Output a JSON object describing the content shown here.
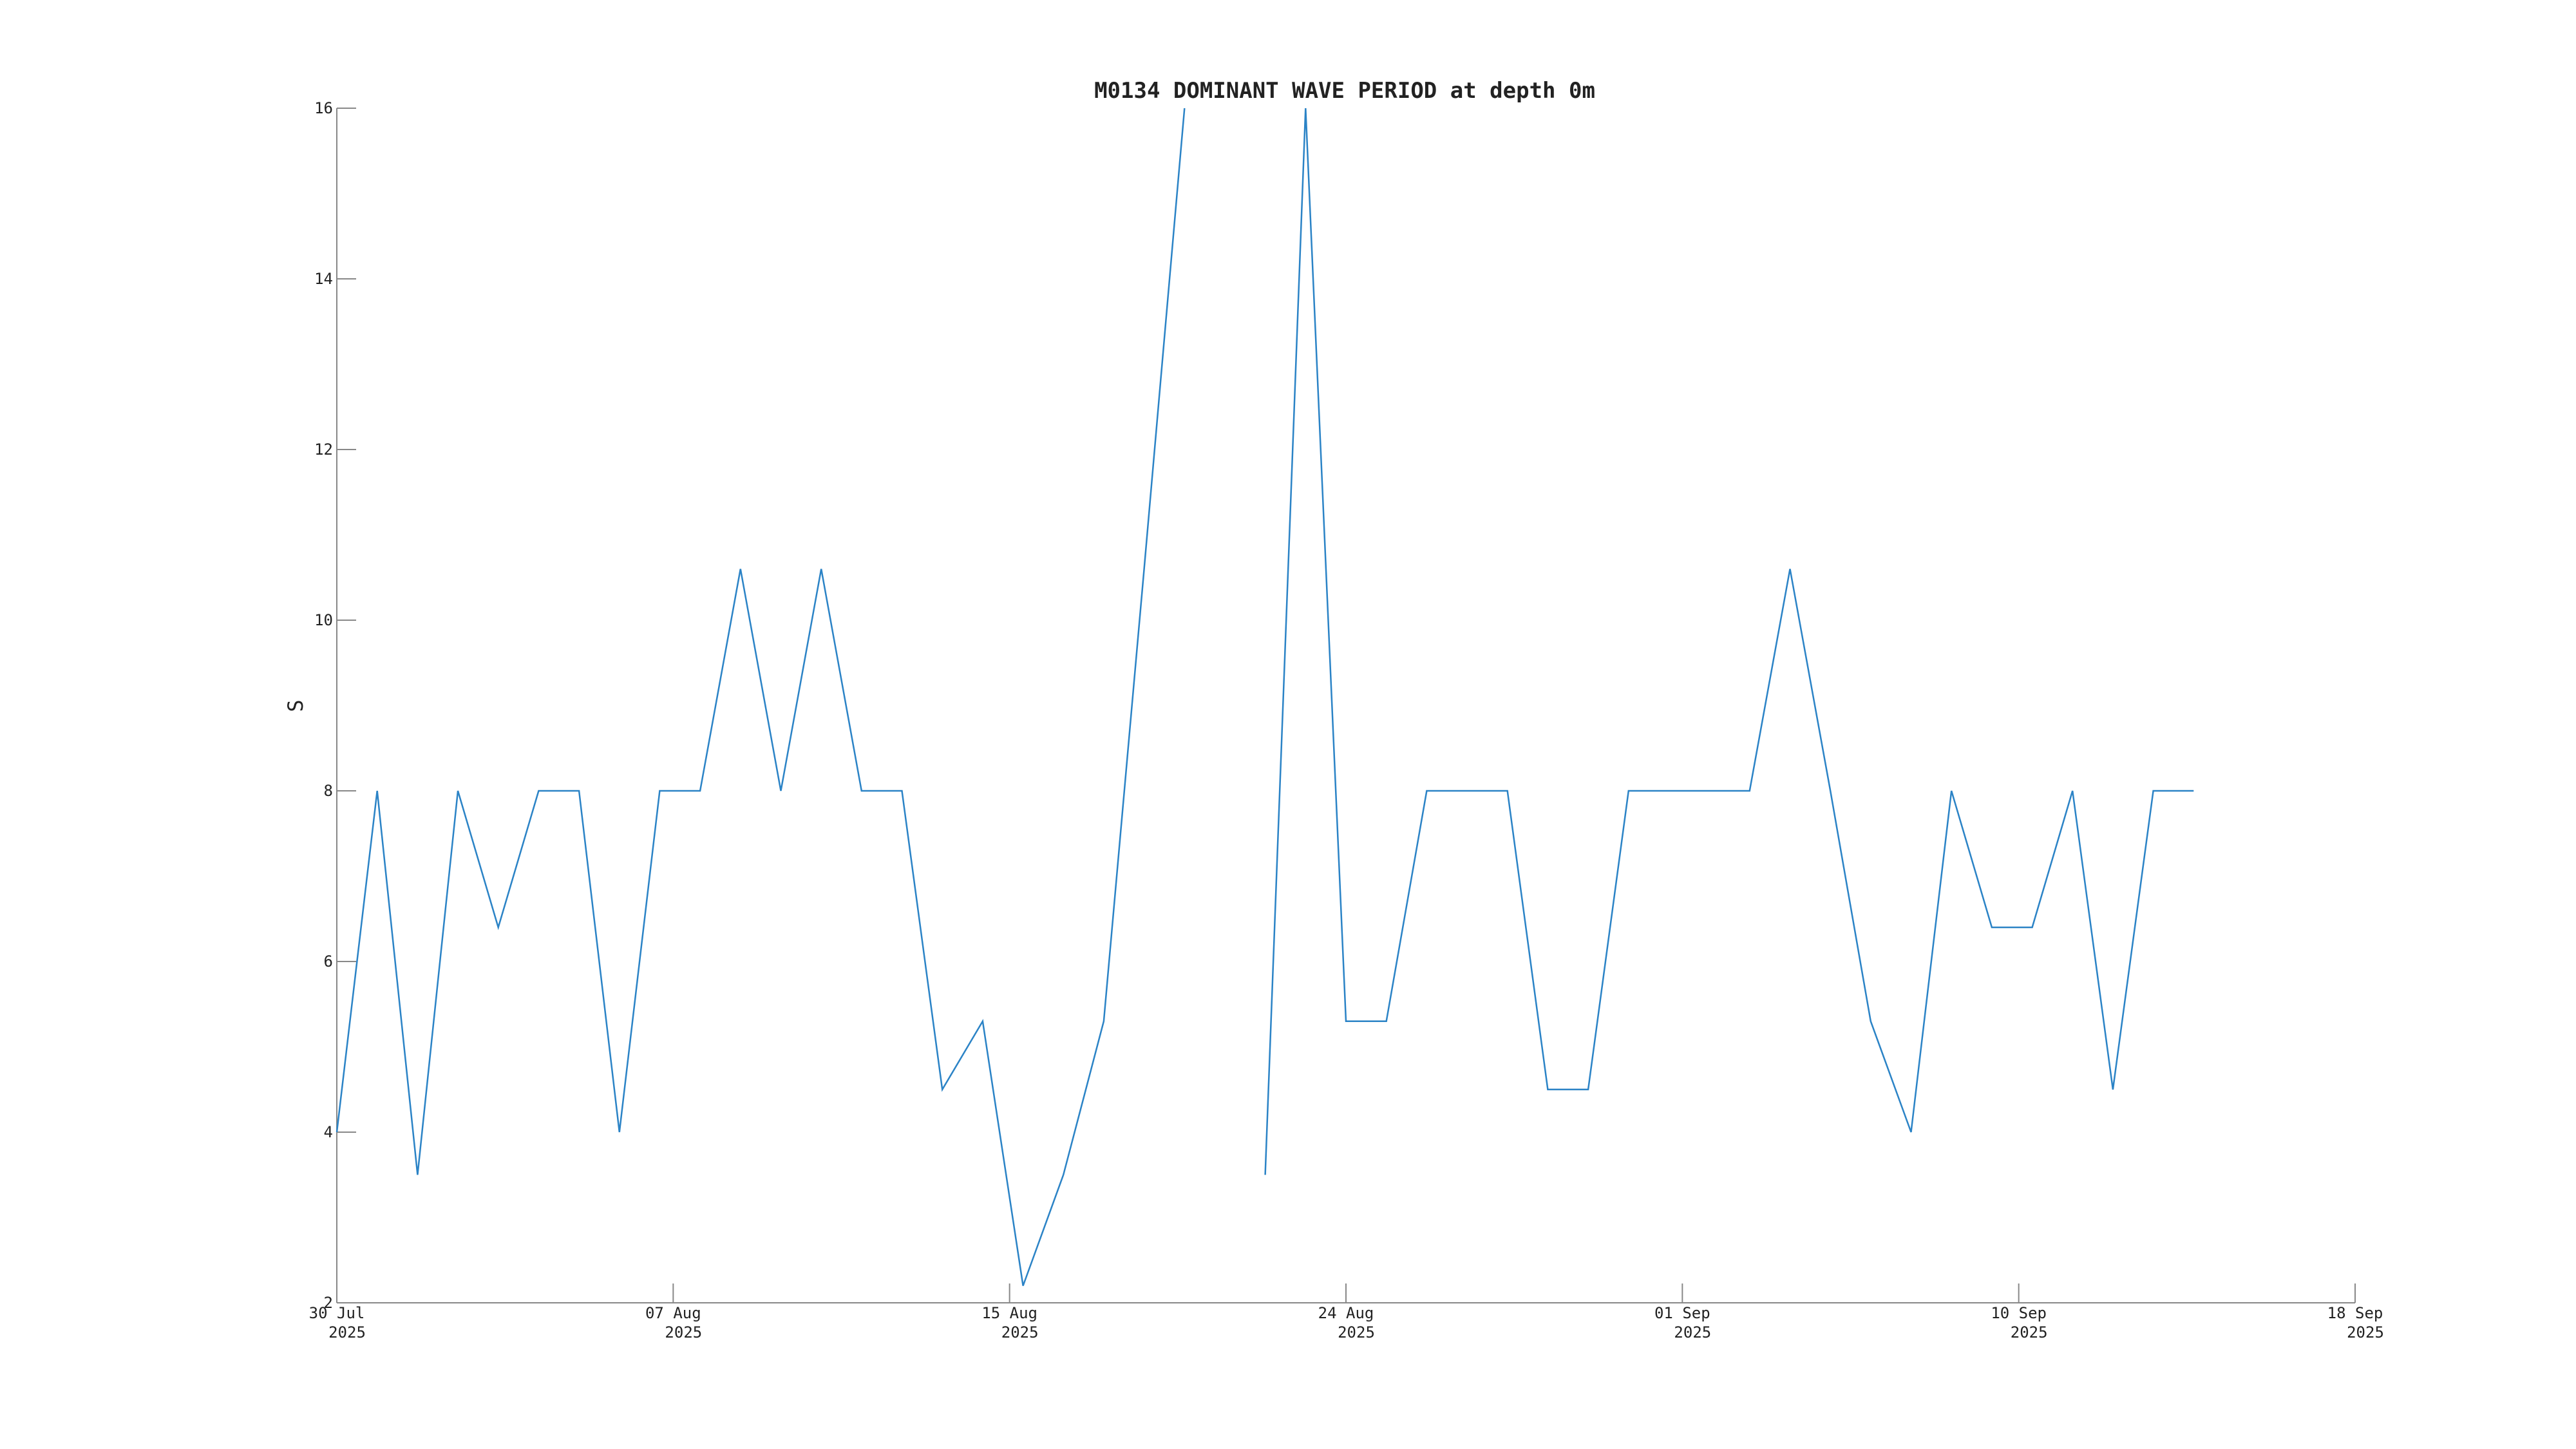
{
  "chart_data": {
    "type": "line",
    "title": "M0134 DOMINANT WAVE PERIOD at depth 0m",
    "y_label": "S",
    "x": [
      "2025-07-30",
      "2025-07-31",
      "2025-08-01",
      "2025-08-02",
      "2025-08-03",
      "2025-08-04",
      "2025-08-05",
      "2025-08-06",
      "2025-08-07",
      "2025-08-08",
      "2025-08-09",
      "2025-08-10",
      "2025-08-11",
      "2025-08-12",
      "2025-08-13",
      "2025-08-14",
      "2025-08-15",
      "2025-08-16",
      "2025-08-17",
      "2025-08-18",
      "2025-08-19",
      "2025-08-20",
      "2025-08-21",
      "2025-08-22",
      "2025-08-23",
      "2025-08-24",
      "2025-08-25",
      "2025-08-26",
      "2025-08-27",
      "2025-08-28",
      "2025-08-29",
      "2025-08-30",
      "2025-08-31",
      "2025-09-01",
      "2025-09-02",
      "2025-09-03",
      "2025-09-04",
      "2025-09-05",
      "2025-09-06",
      "2025-09-07",
      "2025-09-08",
      "2025-09-09",
      "2025-09-10",
      "2025-09-11",
      "2025-09-12",
      "2025-09-13",
      "2025-09-14"
    ],
    "series": [
      {
        "name": "DOMINANT WAVE PERIOD",
        "color": "#2b83c6",
        "values": [
          4,
          8,
          3.5,
          8,
          6.4,
          8,
          8,
          4,
          8,
          8,
          10.6,
          8,
          10.6,
          8,
          8,
          4.5,
          5.3,
          2.2,
          3.5,
          5.3,
          10.6,
          16,
          null,
          3.5,
          16,
          5.3,
          5.3,
          8,
          8,
          8,
          4.5,
          4.5,
          8,
          8,
          8,
          8,
          10.6,
          8,
          5.3,
          4,
          8,
          6.4,
          6.4,
          8,
          4.5,
          8,
          8
        ]
      }
    ],
    "xlim": [
      "2025-07-30T00:00",
      "2025-09-18T00:00"
    ],
    "xticks": [
      {
        "value": "2025-07-30T00:00",
        "label": "30 Jul\n2025"
      },
      {
        "value": "2025-08-07T08:00",
        "label": "07 Aug\n2025"
      },
      {
        "value": "2025-08-15T16:00",
        "label": "15 Aug\n2025"
      },
      {
        "value": "2025-08-24T00:00",
        "label": "24 Aug\n2025"
      },
      {
        "value": "2025-09-01T08:00",
        "label": "01 Sep\n2025"
      },
      {
        "value": "2025-09-09T16:00",
        "label": "10 Sep\n2025"
      },
      {
        "value": "2025-09-18T00:00",
        "label": "18 Sep\n2025"
      }
    ],
    "ylim": [
      2,
      16
    ],
    "yticks": [
      2,
      4,
      6,
      8,
      10,
      12,
      14,
      16
    ]
  }
}
